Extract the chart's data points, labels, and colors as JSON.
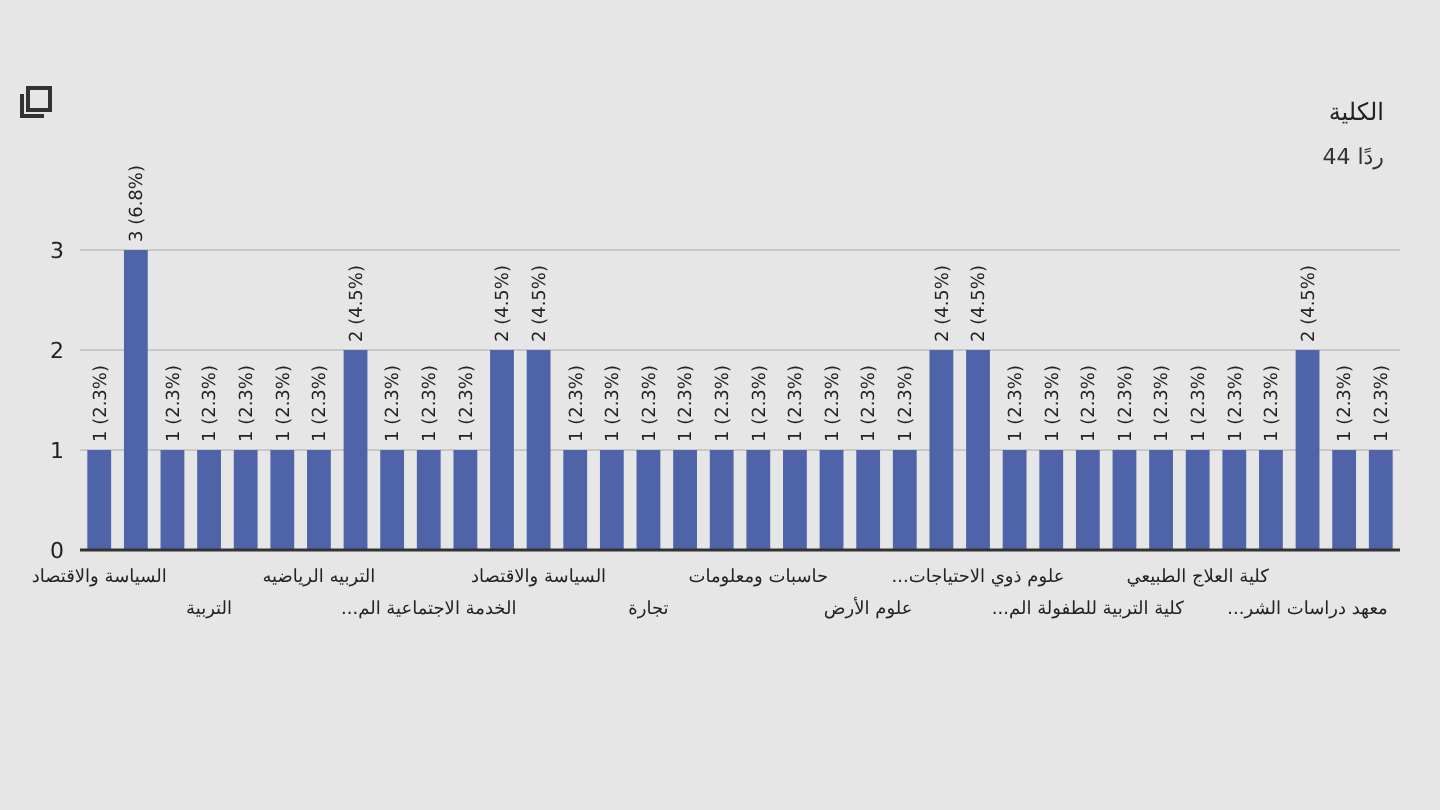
{
  "chart_data": {
    "type": "bar",
    "title": "الكلية",
    "subtitle": "44 ردًا",
    "categories": [
      "السياسة والاقتصاد",
      null,
      null,
      "التربية",
      null,
      null,
      "التربيه الرياضيه",
      null,
      null,
      "الخدمة الاجتماعية الم...",
      null,
      null,
      "السياسة والاقتصاد",
      null,
      null,
      "تجارة",
      null,
      null,
      "حاسبات ومعلومات",
      null,
      null,
      "علوم الأرض",
      null,
      null,
      "علوم ذوي الاحتياجات...",
      null,
      null,
      "كلية التربية للطفولة الم...",
      null,
      null,
      "كلية العلاج الطبيعي",
      null,
      null,
      "معهد دراسات الشر...",
      null,
      null
    ],
    "values": [
      1,
      3,
      1,
      1,
      1,
      1,
      1,
      2,
      1,
      1,
      1,
      2,
      2,
      1,
      1,
      1,
      1,
      1,
      1,
      1,
      1,
      1,
      1,
      2,
      2,
      1,
      1,
      1,
      1,
      1,
      1,
      1,
      1,
      2,
      1,
      1
    ],
    "value_labels": [
      "1 (2.3%)",
      "3 (6.8%)",
      "1 (2.3%)",
      "1 (2.3%)",
      "1 (2.3%)",
      "1 (2.3%)",
      "1 (2.3%)",
      "2 (4.5%)",
      "1 (2.3%)",
      "1 (2.3%)",
      "1 (2.3%)",
      "2 (4.5%)",
      "2 (4.5%)",
      "1 (2.3%)",
      "1 (2.3%)",
      "1 (2.3%)",
      "1 (2.3%)",
      "1 (2.3%)",
      "1 (2.3%)",
      "1 (2.3%)",
      "1 (2.3%)",
      "1 (2.3%)",
      "1 (2.3%)",
      "2 (4.5%)",
      "2 (4.5%)",
      "1 (2.3%)",
      "1 (2.3%)",
      "1 (2.3%)",
      "1 (2.3%)",
      "1 (2.3%)",
      "1 (2.3%)",
      "1 (2.3%)",
      "1 (2.3%)",
      "2 (4.5%)",
      "1 (2.3%)",
      "1 (2.3%)"
    ],
    "color": "#4f63a8",
    "ylim": [
      0,
      3
    ],
    "yticks": [
      0,
      1,
      2,
      3
    ],
    "grid": "y"
  }
}
